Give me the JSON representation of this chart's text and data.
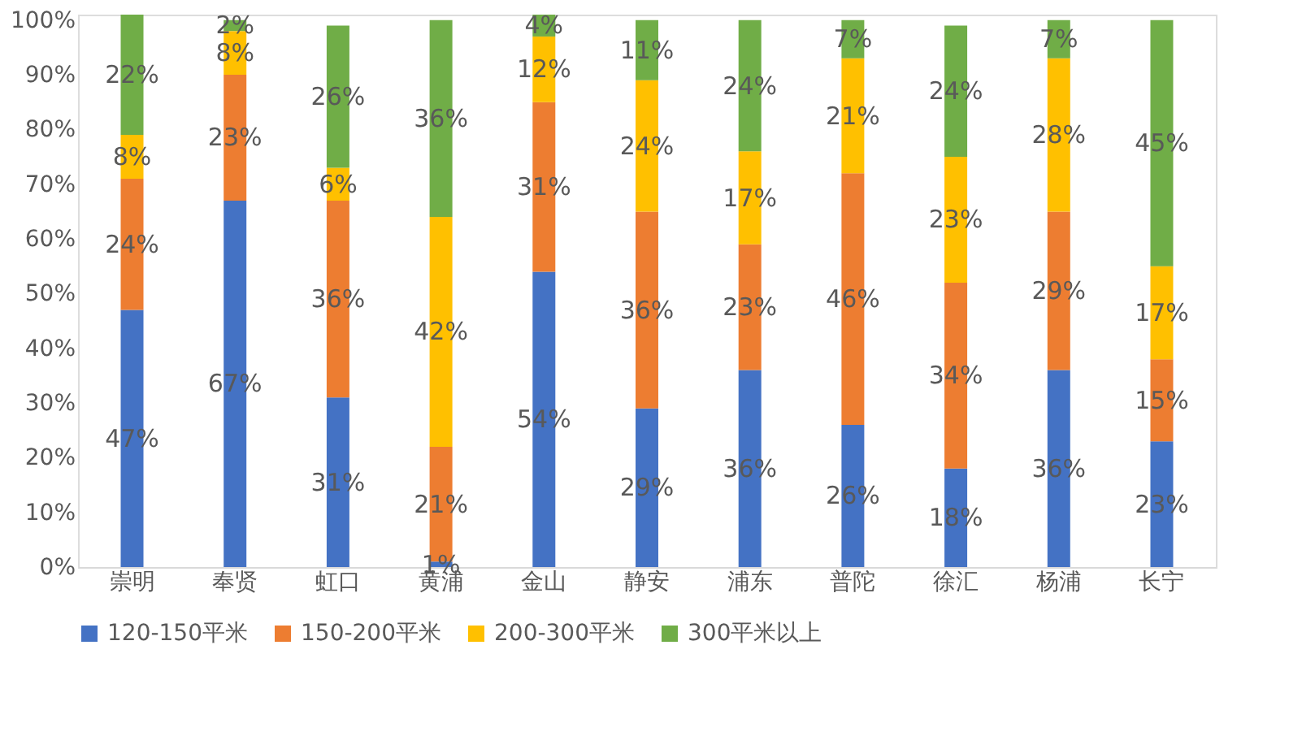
{
  "chart_data": {
    "type": "bar",
    "stacked": true,
    "categories": [
      "崇明",
      "奉贤",
      "虹口",
      "黄浦",
      "金山",
      "静安",
      "浦东",
      "普陀",
      "徐汇",
      "杨浦",
      "长宁"
    ],
    "series": [
      {
        "name": "120-150平米",
        "color": "#4472c4",
        "values": [
          47,
          67,
          31,
          1,
          54,
          29,
          36,
          26,
          18,
          36,
          23
        ],
        "value_labels": [
          "47%",
          "67%",
          "31%",
          "1%",
          "54%",
          "29%",
          "36%",
          "26%",
          "18%",
          "36%",
          "23%"
        ]
      },
      {
        "name": "150-200平米",
        "color": "#ed7d31",
        "values": [
          24,
          23,
          36,
          21,
          31,
          36,
          23,
          46,
          34,
          29,
          15
        ],
        "value_labels": [
          "24%",
          "23%",
          "36%",
          "21%",
          "31%",
          "36%",
          "23%",
          "46%",
          "34%",
          "29%",
          "15%"
        ]
      },
      {
        "name": "200-300平米",
        "color": "#ffc000",
        "values": [
          8,
          8,
          6,
          42,
          12,
          24,
          17,
          21,
          23,
          28,
          17
        ],
        "value_labels": [
          "8%",
          "8%",
          "6%",
          "42%",
          "12%",
          "24%",
          "17%",
          "21%",
          "23%",
          "28%",
          "17%"
        ]
      },
      {
        "name": "300平米以上",
        "color": "#70ad47",
        "values": [
          22,
          2,
          26,
          36,
          4,
          11,
          24,
          7,
          24,
          7,
          45
        ],
        "value_labels": [
          "22%",
          "2%",
          "26%",
          "36%",
          "4%",
          "11%",
          "24%",
          "7%",
          "24%",
          "7%",
          "45%"
        ]
      }
    ],
    "ylim": [
      0,
      101
    ],
    "yticks": [
      {
        "value": 0,
        "label": "0%"
      },
      {
        "value": 10,
        "label": "10%"
      },
      {
        "value": 20,
        "label": "20%"
      },
      {
        "value": 30,
        "label": "30%"
      },
      {
        "value": 40,
        "label": "40%"
      },
      {
        "value": 50,
        "label": "50%"
      },
      {
        "value": 60,
        "label": "60%"
      },
      {
        "value": 70,
        "label": "70%"
      },
      {
        "value": 80,
        "label": "80%"
      },
      {
        "value": 90,
        "label": "90%"
      },
      {
        "value": 100,
        "label": "100%"
      }
    ],
    "grid": false,
    "legend": "bottom"
  }
}
